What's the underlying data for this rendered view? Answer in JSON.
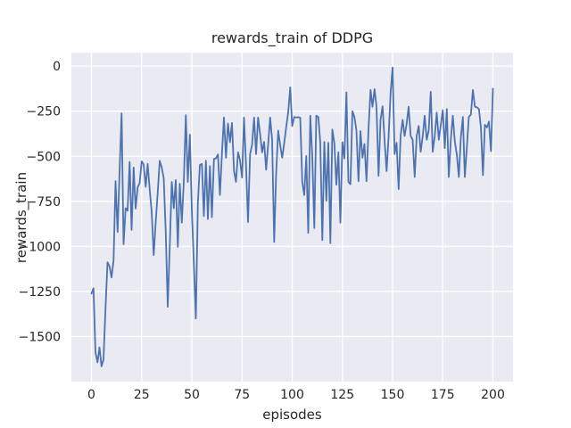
{
  "chart_data": {
    "type": "line",
    "title": "rewards_train of DDPG",
    "xlabel": "episodes",
    "ylabel": "rewards_train",
    "x_ticks": [
      0,
      25,
      50,
      75,
      100,
      125,
      150,
      175,
      200
    ],
    "y_ticks": [
      0,
      -250,
      -500,
      -750,
      -1000,
      -1250,
      -1500
    ],
    "xlim": [
      -10,
      210
    ],
    "ylim": [
      -1750,
      75
    ],
    "grid": true,
    "legend": false,
    "colors": {
      "line": "#4c72b0",
      "plot_bg": "#eaeaf2",
      "grid": "#ffffff",
      "text": "#262626",
      "figure_bg": "#ffffff"
    },
    "series": [
      {
        "name": "rewards_train",
        "x_start": 0,
        "x_step": 1,
        "values": [
          -1262,
          -1232,
          -1588,
          -1643,
          -1560,
          -1665,
          -1628,
          -1340,
          -1088,
          -1112,
          -1172,
          -1078,
          -638,
          -920,
          -588,
          -262,
          -988,
          -788,
          -802,
          -532,
          -908,
          -562,
          -790,
          -672,
          -648,
          -528,
          -545,
          -670,
          -542,
          -685,
          -808,
          -1048,
          -868,
          -698,
          -525,
          -562,
          -622,
          -925,
          -1335,
          -998,
          -642,
          -788,
          -632,
          -1002,
          -652,
          -868,
          -642,
          -272,
          -642,
          -380,
          -798,
          -1098,
          -1400,
          -758,
          -548,
          -542,
          -832,
          -525,
          -848,
          -555,
          -838,
          -515,
          -512,
          -490,
          -715,
          -482,
          -285,
          -508,
          -318,
          -422,
          -315,
          -582,
          -642,
          -478,
          -522,
          -618,
          -285,
          -558,
          -865,
          -488,
          -438,
          -285,
          -488,
          -285,
          -375,
          -478,
          -420,
          -575,
          -438,
          -285,
          -408,
          -975,
          -598,
          -358,
          -438,
          -508,
          -428,
          -338,
          -258,
          -118,
          -332,
          -282,
          -285,
          -283,
          -286,
          -642,
          -715,
          -498,
          -925,
          -275,
          -498,
          -898,
          -275,
          -282,
          -425,
          -965,
          -420,
          -748,
          -425,
          -982,
          -352,
          -428,
          -658,
          -478,
          -868,
          -422,
          -512,
          -145,
          -642,
          -655,
          -250,
          -282,
          -358,
          -638,
          -360,
          -508,
          -432,
          -638,
          -355,
          -132,
          -225,
          -128,
          -225,
          -608,
          -298,
          -222,
          -408,
          -582,
          -398,
          -148,
          -8,
          -488,
          -425,
          -682,
          -388,
          -298,
          -388,
          -318,
          -225,
          -388,
          -408,
          -615,
          -388,
          -332,
          -475,
          -388,
          -275,
          -408,
          -358,
          -142,
          -475,
          -388,
          -258,
          -408,
          -328,
          -245,
          -455,
          -238,
          -615,
          -408,
          -275,
          -418,
          -490,
          -615,
          -398,
          -282,
          -615,
          -448,
          -282,
          -268,
          -132,
          -225,
          -228,
          -238,
          -338,
          -605,
          -325,
          -340,
          -308,
          -472,
          -125
        ]
      }
    ]
  }
}
